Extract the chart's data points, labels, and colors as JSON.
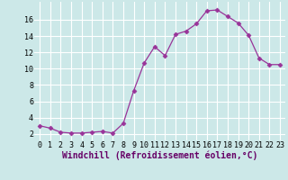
{
  "x": [
    0,
    1,
    2,
    3,
    4,
    5,
    6,
    7,
    8,
    9,
    10,
    11,
    12,
    13,
    14,
    15,
    16,
    17,
    18,
    19,
    20,
    21,
    22,
    23
  ],
  "y": [
    3.0,
    2.7,
    2.2,
    2.1,
    2.1,
    2.2,
    2.3,
    2.1,
    3.3,
    7.3,
    10.7,
    12.7,
    11.6,
    14.2,
    14.6,
    15.5,
    17.1,
    17.2,
    16.4,
    15.6,
    14.1,
    11.3,
    10.5,
    10.5
  ],
  "line_color": "#993399",
  "marker": "D",
  "marker_size": 2.5,
  "bg_color": "#cce8e8",
  "grid_color": "#ffffff",
  "xlabel": "Windchill (Refroidissement éolien,°C)",
  "xlabel_fontsize": 7,
  "tick_fontsize": 6,
  "ylabel_ticks": [
    2,
    4,
    6,
    8,
    10,
    12,
    14,
    16
  ],
  "xlim": [
    -0.5,
    23.5
  ],
  "ylim": [
    1.2,
    18.2
  ]
}
